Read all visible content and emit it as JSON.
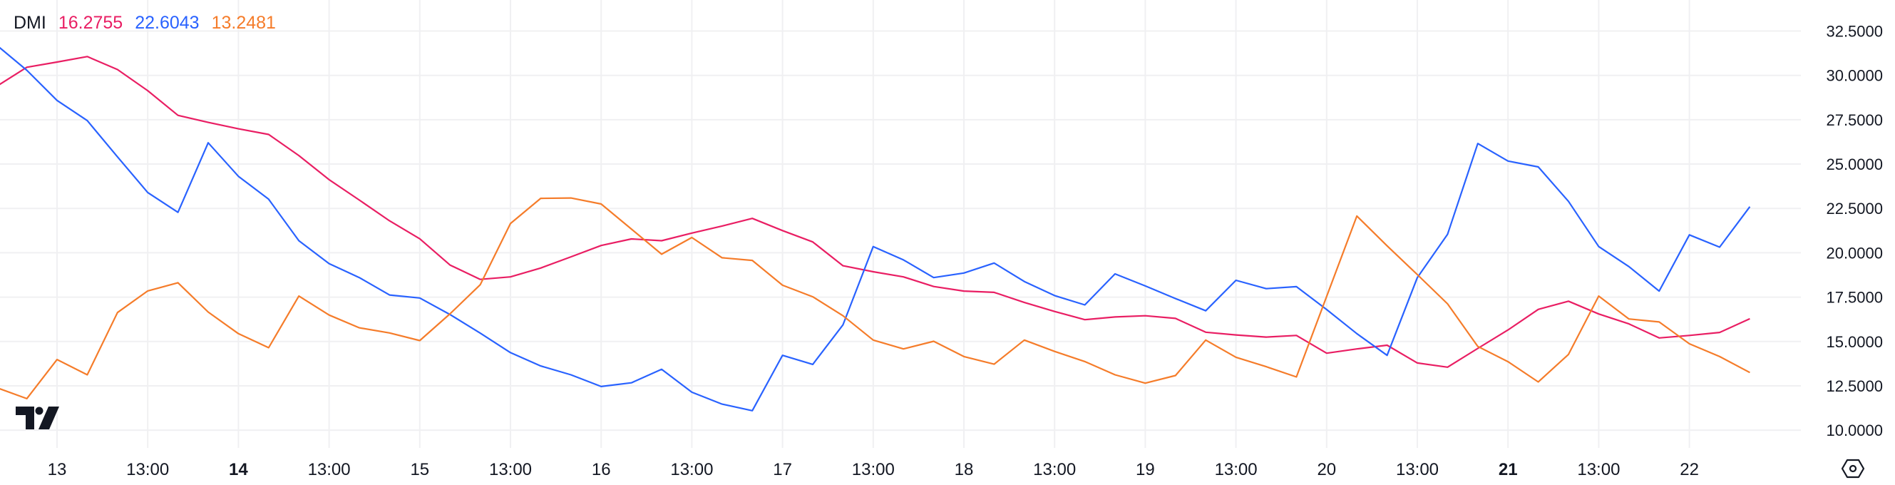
{
  "legend": {
    "name": "DMI",
    "values": [
      "16.2755",
      "22.6043",
      "13.2481"
    ]
  },
  "colors": {
    "series": [
      "#e91e63",
      "#2962ff",
      "#f57c2a"
    ],
    "text": "#131722",
    "grid": "#f0f0f2"
  },
  "icons": {
    "logo": "tradingview-logo",
    "settings": "settings-hexagon-icon"
  },
  "logo_text": "TV",
  "chart_data": {
    "type": "line",
    "title": "DMI",
    "xlabel": "",
    "ylabel": "",
    "ylim": [
      9,
      34.25
    ],
    "grid": true,
    "legend": "top-left",
    "y_ticks": [
      "10.0000",
      "12.5000",
      "15.0000",
      "17.5000",
      "20.0000",
      "22.5000",
      "25.0000",
      "27.5000",
      "30.0000",
      "32.5000"
    ],
    "x_ticks": [
      {
        "at": "13 01:00",
        "label": "13",
        "bold": false
      },
      {
        "at": "13 13:00",
        "label": "13:00",
        "bold": false
      },
      {
        "at": "14 01:00",
        "label": "14",
        "bold": true
      },
      {
        "at": "14 13:00",
        "label": "13:00",
        "bold": false
      },
      {
        "at": "15 01:00",
        "label": "15",
        "bold": false
      },
      {
        "at": "15 13:00",
        "label": "13:00",
        "bold": false
      },
      {
        "at": "16 01:00",
        "label": "16",
        "bold": false
      },
      {
        "at": "16 13:00",
        "label": "13:00",
        "bold": false
      },
      {
        "at": "17 01:00",
        "label": "17",
        "bold": false
      },
      {
        "at": "17 13:00",
        "label": "13:00",
        "bold": false
      },
      {
        "at": "18 01:00",
        "label": "18",
        "bold": false
      },
      {
        "at": "18 13:00",
        "label": "13:00",
        "bold": false
      },
      {
        "at": "19 01:00",
        "label": "19",
        "bold": false
      },
      {
        "at": "19 13:00",
        "label": "13:00",
        "bold": false
      },
      {
        "at": "20 01:00",
        "label": "20",
        "bold": false
      },
      {
        "at": "20 13:00",
        "label": "13:00",
        "bold": false
      },
      {
        "at": "21 01:00",
        "label": "21",
        "bold": true
      },
      {
        "at": "21 13:00",
        "label": "13:00",
        "bold": false
      },
      {
        "at": "22 01:00",
        "label": "22",
        "bold": false
      },
      {
        "at": "22 13:00",
        "label": "13:00",
        "bold": false
      }
    ],
    "x": [
      "12 17:00",
      "12 21:00",
      "13 01:00",
      "13 05:00",
      "13 09:00",
      "13 13:00",
      "13 17:00",
      "13 21:00",
      "14 01:00",
      "14 05:00",
      "14 09:00",
      "14 13:00",
      "14 17:00",
      "14 21:00",
      "15 01:00",
      "15 05:00",
      "15 09:00",
      "15 13:00",
      "15 17:00",
      "15 21:00",
      "16 01:00",
      "16 05:00",
      "16 09:00",
      "16 13:00",
      "16 17:00",
      "16 21:00",
      "17 01:00",
      "17 05:00",
      "17 09:00",
      "17 13:00",
      "17 17:00",
      "17 21:00",
      "18 01:00",
      "18 05:00",
      "18 09:00",
      "18 13:00",
      "18 17:00",
      "18 21:00",
      "19 01:00",
      "19 05:00",
      "19 09:00",
      "19 13:00",
      "19 17:00",
      "19 21:00",
      "20 01:00",
      "20 05:00",
      "20 09:00",
      "20 13:00",
      "20 17:00",
      "20 21:00",
      "21 01:00",
      "21 05:00",
      "21 09:00",
      "21 13:00",
      "21 17:00",
      "21 21:00",
      "22 01:00",
      "22 05:00",
      "22 09:00"
    ],
    "series": [
      {
        "color": "#e91e63",
        "values": [
          29.38,
          30.46,
          30.75,
          31.06,
          30.33,
          29.14,
          27.75,
          27.35,
          26.99,
          26.67,
          25.48,
          24.12,
          22.97,
          21.8,
          20.79,
          19.31,
          18.5,
          18.64,
          19.14,
          19.77,
          20.41,
          20.78,
          20.68,
          21.11,
          21.51,
          21.94,
          21.25,
          20.61,
          19.27,
          18.93,
          18.64,
          18.1,
          17.84,
          17.77,
          17.2,
          16.69,
          16.23,
          16.38,
          16.45,
          16.3,
          15.52,
          15.37,
          15.25,
          15.34,
          14.34,
          14.58,
          14.79,
          13.79,
          13.55,
          14.61,
          15.65,
          16.81,
          17.27,
          16.55,
          15.99,
          15.2,
          15.34,
          15.51,
          16.28
        ]
      },
      {
        "color": "#2962ff",
        "values": [
          31.71,
          30.29,
          28.59,
          27.45,
          25.41,
          23.4,
          22.28,
          26.2,
          24.31,
          23.02,
          20.68,
          19.39,
          18.6,
          17.62,
          17.45,
          16.52,
          15.47,
          14.37,
          13.62,
          13.12,
          12.46,
          12.67,
          13.43,
          12.14,
          11.47,
          11.1,
          14.22,
          13.71,
          15.94,
          20.35,
          19.6,
          18.6,
          18.86,
          19.42,
          18.38,
          17.59,
          17.06,
          18.81,
          18.13,
          17.42,
          16.73,
          18.45,
          17.98,
          18.09,
          16.8,
          15.44,
          14.22,
          18.6,
          21.04,
          26.16,
          25.17,
          24.84,
          22.9,
          20.35,
          19.22,
          17.84,
          21.01,
          20.32,
          22.6
        ]
      },
      {
        "color": "#f57c2a",
        "values": [
          12.4,
          11.78,
          13.98,
          13.12,
          16.63,
          17.85,
          18.31,
          16.66,
          15.44,
          14.65,
          17.56,
          16.49,
          15.77,
          15.48,
          15.05,
          16.56,
          18.2,
          21.65,
          23.07,
          23.09,
          22.75,
          21.34,
          19.92,
          20.86,
          19.72,
          19.57,
          18.17,
          17.52,
          16.45,
          15.08,
          14.58,
          15.01,
          14.15,
          13.72,
          15.08,
          14.44,
          13.87,
          13.12,
          12.65,
          13.08,
          15.08,
          14.11,
          13.58,
          13.0,
          17.54,
          22.07,
          20.39,
          18.77,
          17.12,
          14.72,
          13.86,
          12.72,
          14.27,
          17.56,
          16.27,
          16.1,
          14.87,
          14.15,
          13.25
        ]
      }
    ]
  }
}
